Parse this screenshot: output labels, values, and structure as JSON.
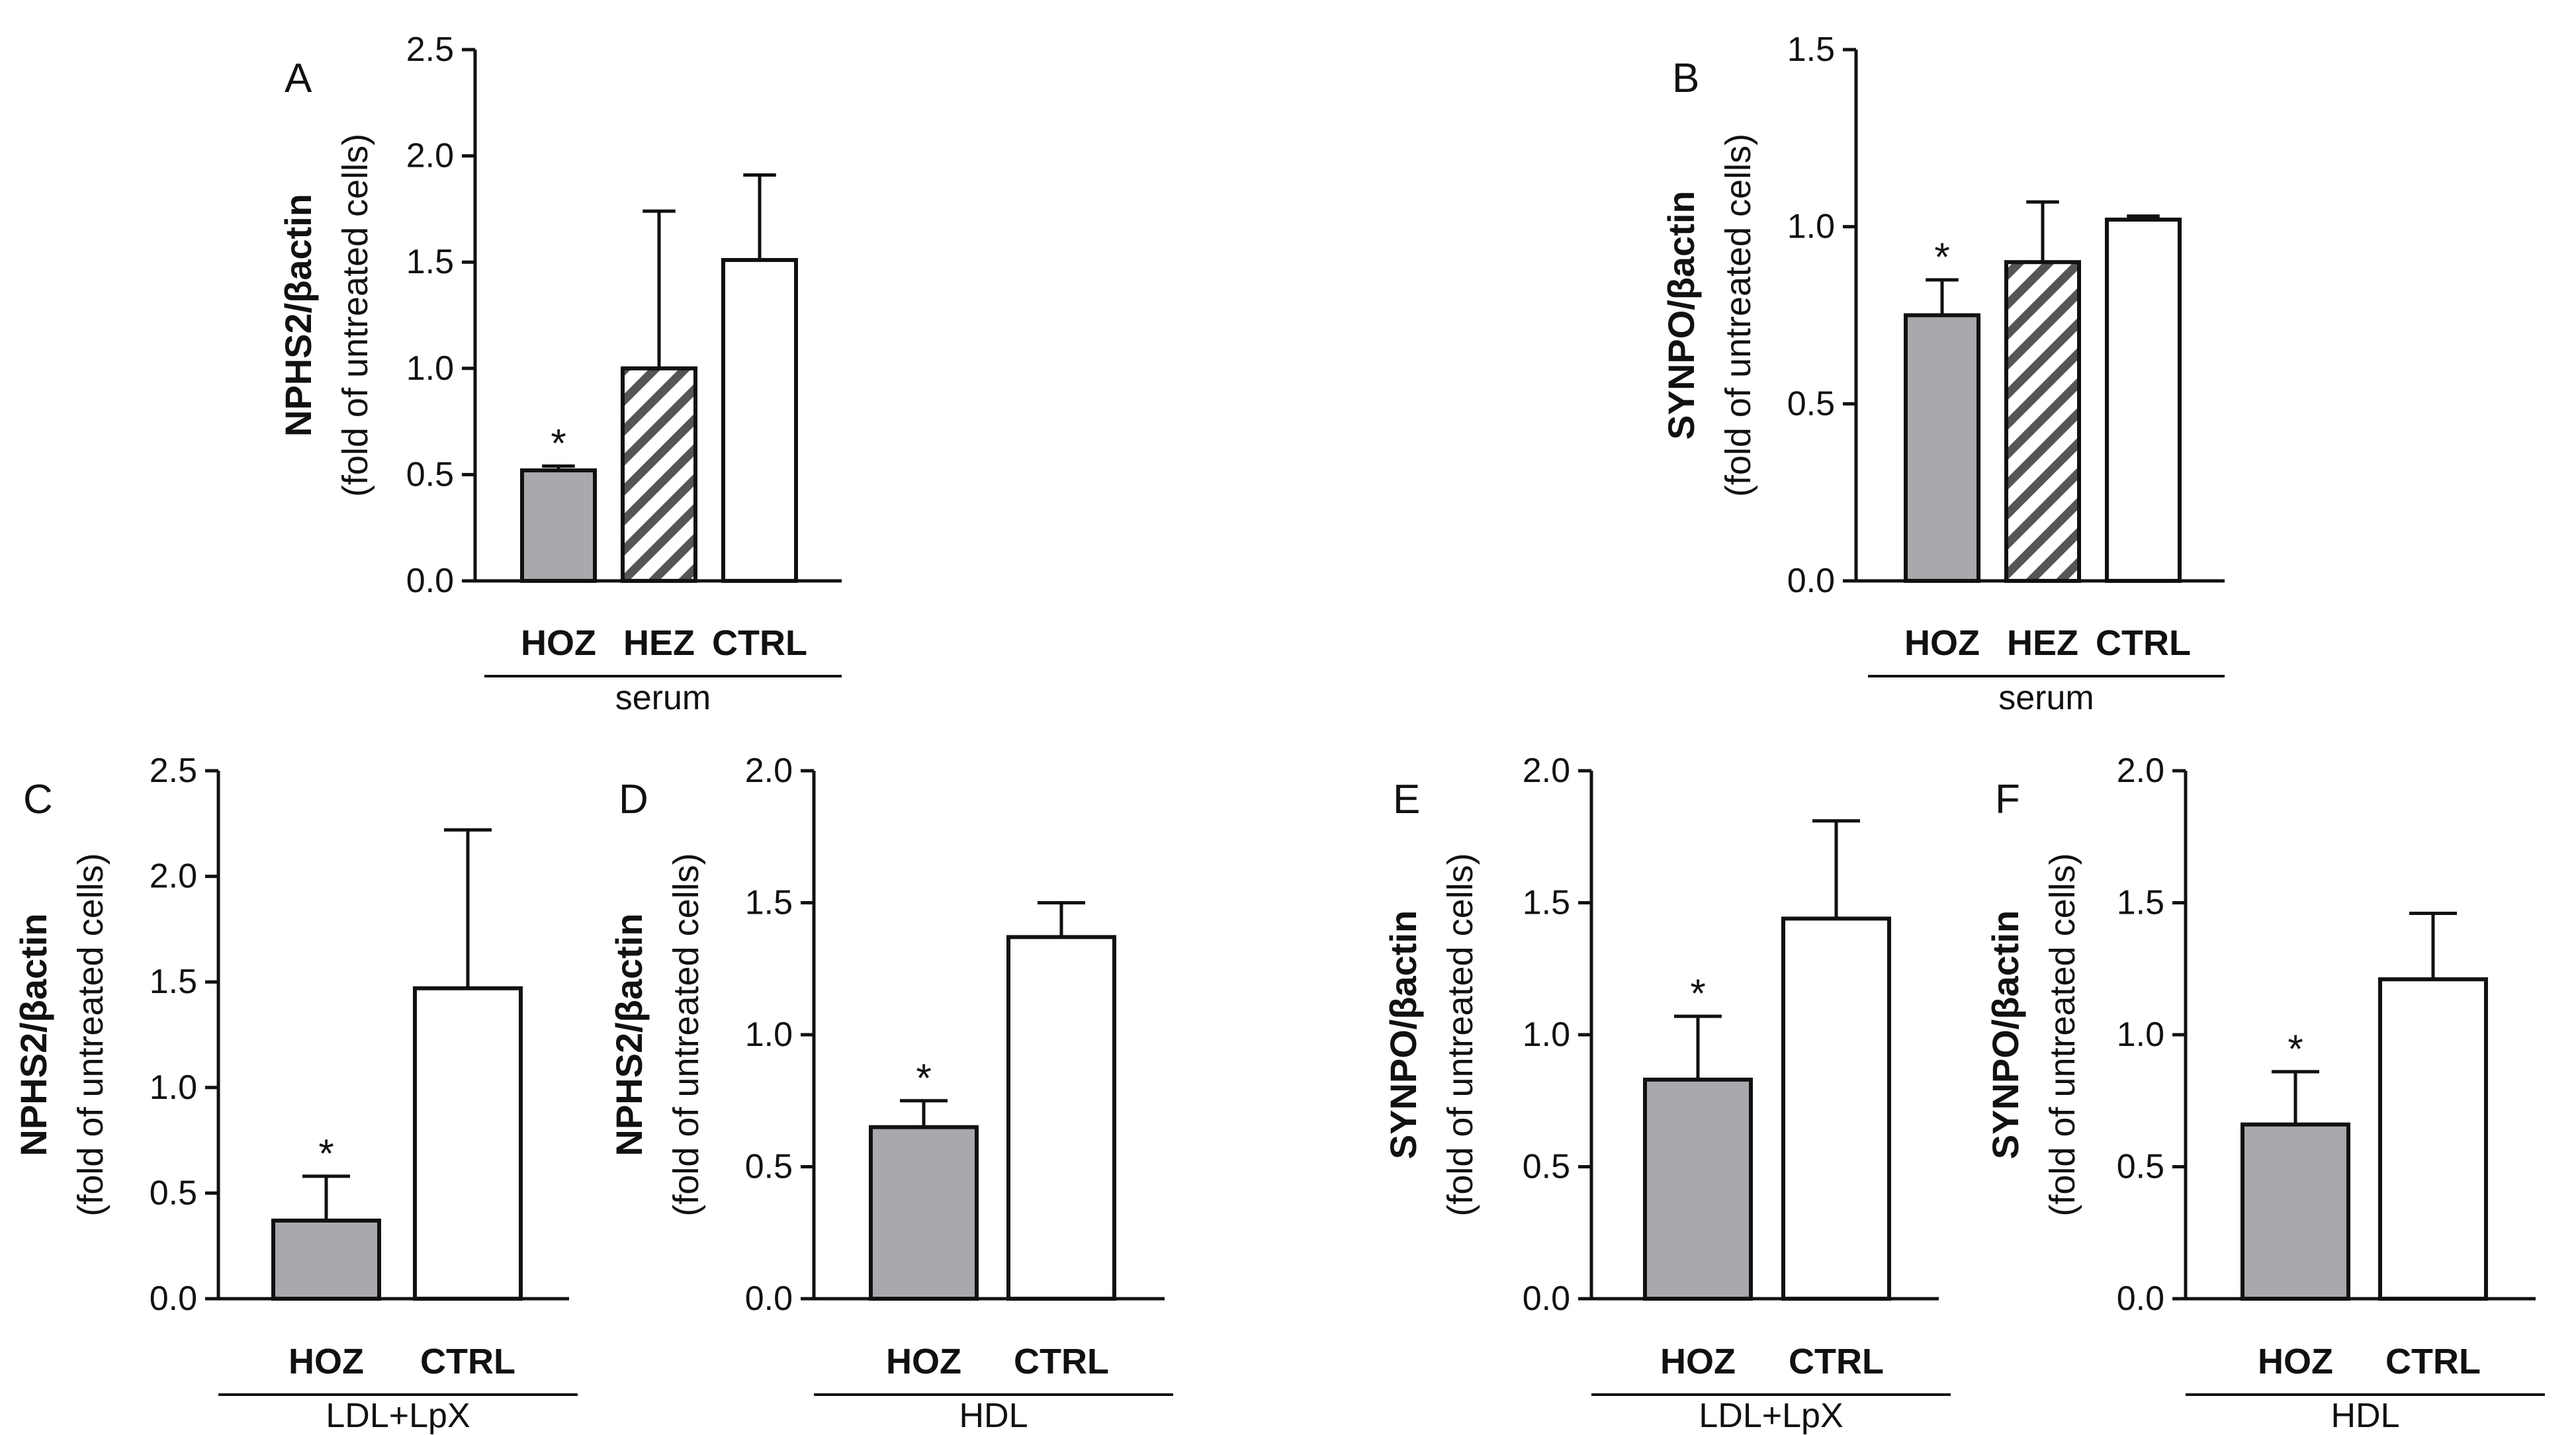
{
  "chart_data": [
    {
      "panel": "A",
      "type": "bar",
      "ylabel_main": "NPHS2/βactin",
      "ylabel_sub": "(fold of untreated cells)",
      "ylim": [
        0,
        2.5
      ],
      "ticks": [
        "0.0",
        "0.5",
        "1.0",
        "1.5",
        "2.0",
        "2.5"
      ],
      "categories": [
        "HOZ",
        "HEZ",
        "CTRL"
      ],
      "values": [
        0.52,
        1.0,
        1.51
      ],
      "errors": [
        0.02,
        0.74,
        0.4
      ],
      "fills": [
        "gray",
        "hatched",
        "white"
      ],
      "annotations": [
        "*",
        "",
        ""
      ],
      "group_label": "serum"
    },
    {
      "panel": "B",
      "type": "bar",
      "ylabel_main": "SYNPO/βactin",
      "ylabel_sub": "(fold of untreated cells)",
      "ylim": [
        0,
        1.5
      ],
      "ticks": [
        "0.0",
        "0.5",
        "1.0",
        "1.5"
      ],
      "categories": [
        "HOZ",
        "HEZ",
        "CTRL"
      ],
      "values": [
        0.75,
        0.9,
        1.02
      ],
      "errors": [
        0.1,
        0.17,
        0.01
      ],
      "fills": [
        "gray",
        "hatched",
        "white"
      ],
      "annotations": [
        "*",
        "",
        ""
      ],
      "group_label": "serum"
    },
    {
      "panel": "C",
      "type": "bar",
      "ylabel_main": "NPHS2/βactin",
      "ylabel_sub": "(fold of untreated cells)",
      "ylim": [
        0,
        2.5
      ],
      "ticks": [
        "0.0",
        "0.5",
        "1.0",
        "1.5",
        "2.0",
        "2.5"
      ],
      "categories": [
        "HOZ",
        "CTRL"
      ],
      "values": [
        0.37,
        1.47
      ],
      "errors": [
        0.21,
        0.75
      ],
      "fills": [
        "gray",
        "white"
      ],
      "annotations": [
        "*",
        ""
      ],
      "group_label": "LDL+LpX"
    },
    {
      "panel": "D",
      "type": "bar",
      "ylabel_main": "NPHS2/βactin",
      "ylabel_sub": "(fold of untreated cells)",
      "ylim": [
        0,
        2.0
      ],
      "ticks": [
        "0.0",
        "0.5",
        "1.0",
        "1.5",
        "2.0"
      ],
      "categories": [
        "HOZ",
        "CTRL"
      ],
      "values": [
        0.65,
        1.37
      ],
      "errors": [
        0.1,
        0.13
      ],
      "fills": [
        "gray",
        "white"
      ],
      "annotations": [
        "*",
        ""
      ],
      "group_label": "HDL"
    },
    {
      "panel": "E",
      "type": "bar",
      "ylabel_main": "SYNPO/βactin",
      "ylabel_sub": "(fold of untreated cells)",
      "ylim": [
        0,
        2.0
      ],
      "ticks": [
        "0.0",
        "0.5",
        "1.0",
        "1.5",
        "2.0"
      ],
      "categories": [
        "HOZ",
        "CTRL"
      ],
      "values": [
        0.83,
        1.44
      ],
      "errors": [
        0.24,
        0.37
      ],
      "fills": [
        "gray",
        "white"
      ],
      "annotations": [
        "*",
        ""
      ],
      "group_label": "LDL+LpX"
    },
    {
      "panel": "F",
      "type": "bar",
      "ylabel_main": "SYNPO/βactin",
      "ylabel_sub": "(fold of untreated cells)",
      "ylim": [
        0,
        2.0
      ],
      "ticks": [
        "0.0",
        "0.5",
        "1.0",
        "1.5",
        "2.0"
      ],
      "categories": [
        "HOZ",
        "CTRL"
      ],
      "values": [
        0.66,
        1.21
      ],
      "errors": [
        0.2,
        0.25
      ],
      "fills": [
        "gray",
        "white"
      ],
      "annotations": [
        "*",
        ""
      ],
      "group_label": "HDL"
    }
  ],
  "colors": {
    "gray_bar": "#a9a8ad",
    "white_bar": "#ffffff",
    "stroke": "#111111",
    "hatch": "#555555"
  }
}
